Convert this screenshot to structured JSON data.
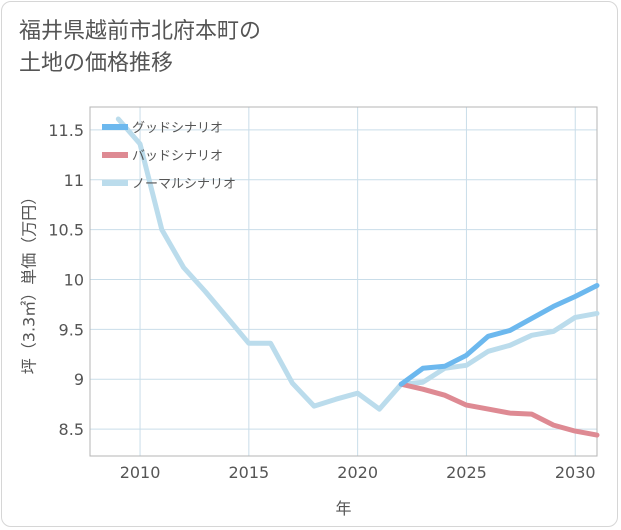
{
  "title": "福井県越前市北府本町の\n土地の価格推移",
  "chart_data": {
    "type": "line",
    "xlabel": "年",
    "ylabel": "坪（3.3㎡）単価（万円）",
    "xlim": [
      2007.7,
      2031
    ],
    "ylim": [
      8.23,
      11.73
    ],
    "xticks": [
      2010,
      2015,
      2020,
      2025,
      2030
    ],
    "yticks": [
      8.5,
      9,
      9.5,
      10,
      10.5,
      11,
      11.5
    ],
    "grid": true,
    "legend_position": "top-left",
    "series": [
      {
        "name": "グッドシナリオ",
        "color": "#6cb8ee",
        "x": [
          2022,
          2023,
          2024,
          2025,
          2026,
          2027,
          2028,
          2029,
          2030,
          2031
        ],
        "y": [
          8.95,
          9.11,
          9.13,
          9.24,
          9.43,
          9.49,
          9.61,
          9.73,
          9.83,
          9.94
        ]
      },
      {
        "name": "バッドシナリオ",
        "color": "#de8a93",
        "x": [
          2022,
          2023,
          2024,
          2025,
          2026,
          2027,
          2028,
          2029,
          2030,
          2031
        ],
        "y": [
          8.95,
          8.9,
          8.84,
          8.74,
          8.7,
          8.66,
          8.65,
          8.54,
          8.48,
          8.44
        ]
      },
      {
        "name": "ノーマルシナリオ",
        "color": "#bbdcec",
        "x": [
          2009,
          2010,
          2011,
          2012,
          2013,
          2014,
          2015,
          2016,
          2017,
          2018,
          2019,
          2020,
          2021,
          2022,
          2023,
          2024,
          2025,
          2026,
          2027,
          2028,
          2029,
          2030,
          2031
        ],
        "y": [
          11.61,
          11.36,
          10.5,
          10.12,
          9.88,
          9.62,
          9.36,
          9.36,
          8.96,
          8.73,
          8.8,
          8.86,
          8.7,
          8.95,
          8.97,
          9.11,
          9.14,
          9.28,
          9.34,
          9.44,
          9.48,
          9.62,
          9.66
        ]
      }
    ]
  }
}
